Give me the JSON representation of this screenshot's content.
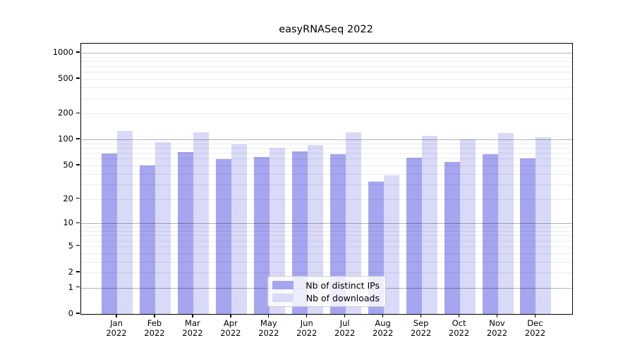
{
  "chart_data": {
    "type": "bar",
    "title": "easyRNASeq 2022",
    "categories": [
      "Jan",
      "Feb",
      "Mar",
      "Apr",
      "May",
      "Jun",
      "Jul",
      "Aug",
      "Sep",
      "Oct",
      "Nov",
      "Dec"
    ],
    "year_label": "2022",
    "series": [
      {
        "name": "Nb of distinct IPs",
        "color": "#a5a5f0",
        "values": [
          69,
          50,
          72,
          59,
          63,
          73,
          68,
          32,
          61,
          55,
          68,
          60
        ]
      },
      {
        "name": "Nb of downloads",
        "color": "#d9d9f8",
        "values": [
          125,
          93,
          122,
          88,
          80,
          86,
          121,
          38,
          111,
          101,
          119,
          106
        ]
      }
    ],
    "y_scale": "log1p",
    "y_ticks": [
      0,
      1,
      2,
      5,
      10,
      20,
      50,
      100,
      200,
      500,
      1000
    ],
    "y_axis_top_value": 1000,
    "grid": "both",
    "legend_position": "inside-bottom-center",
    "colors": {
      "major_gridline": "#b3b3b3",
      "minor_gridline": "#ececec",
      "spine": "#000000",
      "background": "#ffffff"
    }
  }
}
